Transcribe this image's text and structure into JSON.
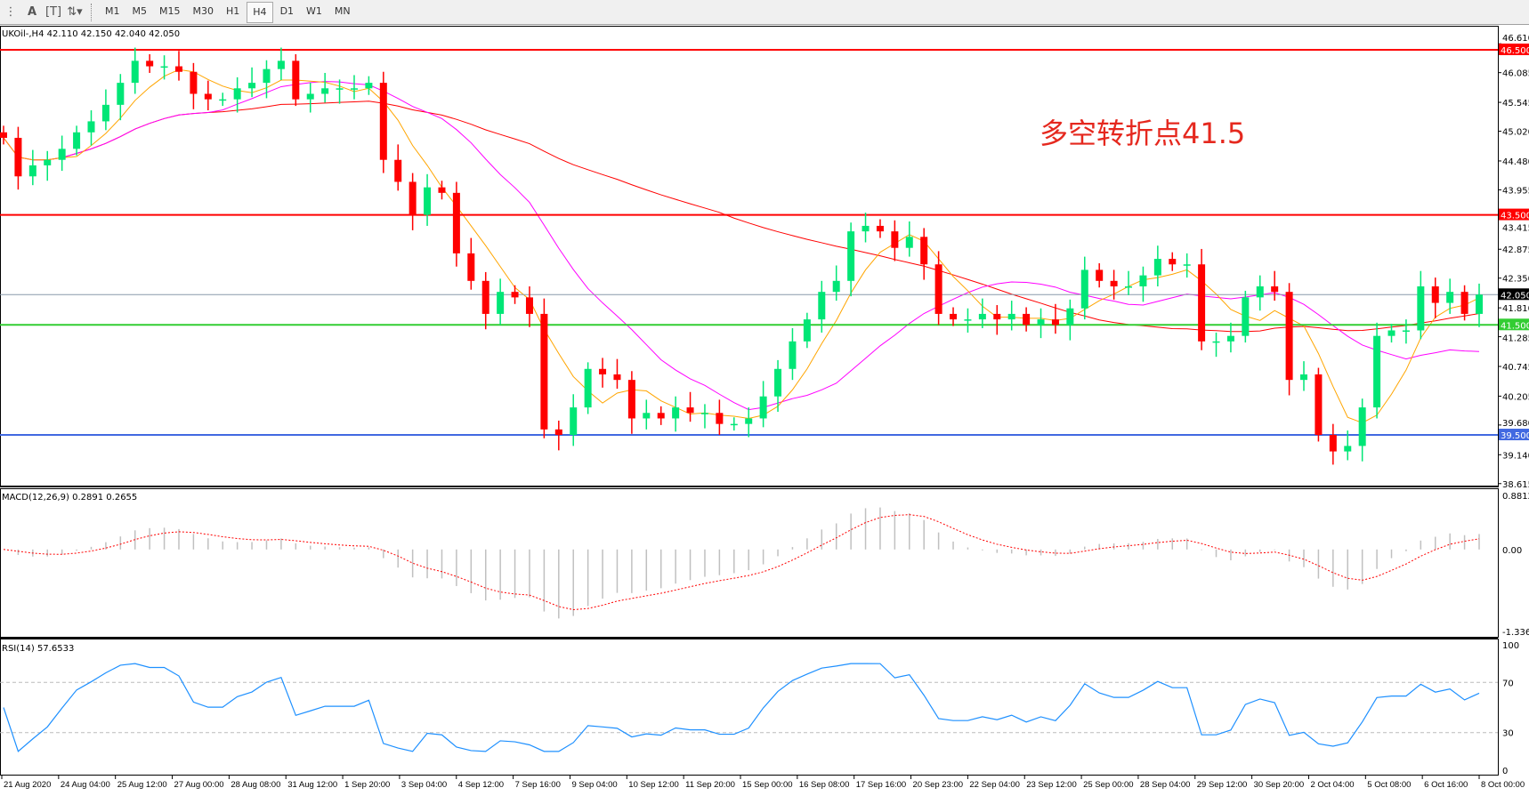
{
  "toolbar": {
    "icons": [
      "grid-icon",
      "text-A-icon",
      "text-label-icon",
      "arrows-icon"
    ],
    "timeframes": [
      "M1",
      "M5",
      "M15",
      "M30",
      "H1",
      "H4",
      "D1",
      "W1",
      "MN"
    ],
    "active_timeframe": "H4"
  },
  "symbol_header": "UKOil-,H4  42.110 42.150 42.040 42.050",
  "annotation": "多空转折点41.5",
  "colors": {
    "bull": "#00e676",
    "bear": "#ff0000",
    "ma_fast": "#ffa500",
    "ma_mid": "#ff00ff",
    "ma_slow": "#ff0000",
    "rsi": "#1e90ff",
    "macd_signal": "#ff0000",
    "macd_hist": "#c0c0c0"
  },
  "chart_data": {
    "type": "candlestick",
    "symbol": "UKOil-",
    "timeframe": "H4",
    "ylim": [
      38.615,
      46.61
    ],
    "y_ticks": [
      "46.610",
      "46.085",
      "45.545",
      "45.020",
      "44.480",
      "43.955",
      "43.415",
      "42.875",
      "42.350",
      "41.810",
      "41.285",
      "40.745",
      "40.205",
      "39.680",
      "39.140",
      "38.615"
    ],
    "x_ticks": [
      "21 Aug 2020",
      "24 Aug 04:00",
      "25 Aug 12:00",
      "27 Aug 00:00",
      "28 Aug 08:00",
      "31 Aug 12:00",
      "1 Sep 20:00",
      "3 Sep 04:00",
      "4 Sep 12:00",
      "7 Sep 16:00",
      "9 Sep 04:00",
      "10 Sep 12:00",
      "11 Sep 20:00",
      "15 Sep 00:00",
      "16 Sep 08:00",
      "17 Sep 16:00",
      "20 Sep 23:00",
      "22 Sep 04:00",
      "23 Sep 12:00",
      "25 Sep 00:00",
      "28 Sep 04:00",
      "29 Sep 12:00",
      "30 Sep 20:00",
      "2 Oct 04:00",
      "5 Oct 08:00",
      "6 Oct 16:00",
      "8 Oct 00:00"
    ],
    "closes": [
      44.9,
      44.2,
      44.4,
      44.5,
      44.7,
      45.0,
      45.2,
      45.5,
      45.9,
      46.3,
      46.2,
      46.2,
      46.1,
      45.7,
      45.6,
      45.6,
      45.8,
      45.9,
      46.15,
      46.3,
      45.6,
      45.7,
      45.8,
      45.8,
      45.8,
      45.9,
      44.5,
      44.1,
      43.5,
      44.0,
      43.9,
      42.8,
      42.3,
      41.7,
      42.1,
      42.0,
      41.7,
      39.6,
      39.5,
      40.0,
      40.7,
      40.6,
      40.5,
      39.8,
      39.9,
      39.8,
      40.0,
      39.9,
      39.9,
      39.7,
      39.7,
      39.8,
      40.2,
      40.7,
      41.2,
      41.6,
      42.1,
      42.3,
      43.2,
      43.3,
      43.2,
      42.9,
      43.1,
      42.6,
      41.7,
      41.6,
      41.6,
      41.7,
      41.6,
      41.7,
      41.5,
      41.6,
      41.5,
      41.8,
      42.5,
      42.3,
      42.2,
      42.2,
      42.4,
      42.7,
      42.6,
      42.6,
      41.2,
      41.2,
      41.3,
      42.0,
      42.2,
      42.1,
      40.5,
      40.6,
      39.5,
      39.2,
      39.3,
      40.0,
      41.3,
      41.4,
      41.4,
      42.2,
      41.9,
      42.1,
      41.7,
      42.05
    ],
    "horizontal_lines": [
      {
        "price": 46.5,
        "label": "46.500",
        "color": "#ff0000"
      },
      {
        "price": 43.5,
        "label": "43.500",
        "color": "#ff0000"
      },
      {
        "price": 41.5,
        "label": "41.500",
        "color": "#32cd32"
      },
      {
        "price": 39.5,
        "label": "39.500",
        "color": "#4169e1"
      }
    ],
    "current_price": {
      "price": 42.05,
      "label": "42.050"
    },
    "macd": {
      "label": "MACD(12,26,9) 0.2891 0.2655",
      "ylim": [
        -1.3368,
        0.8812
      ],
      "y_ticks": [
        "0.8812",
        "0.00",
        "-1.3368"
      ]
    },
    "rsi": {
      "label": "RSI(14) 57.6533",
      "ylim": [
        0,
        100
      ],
      "levels": [
        30,
        70
      ],
      "y_ticks": [
        "100",
        "70",
        "30",
        "0"
      ]
    }
  }
}
